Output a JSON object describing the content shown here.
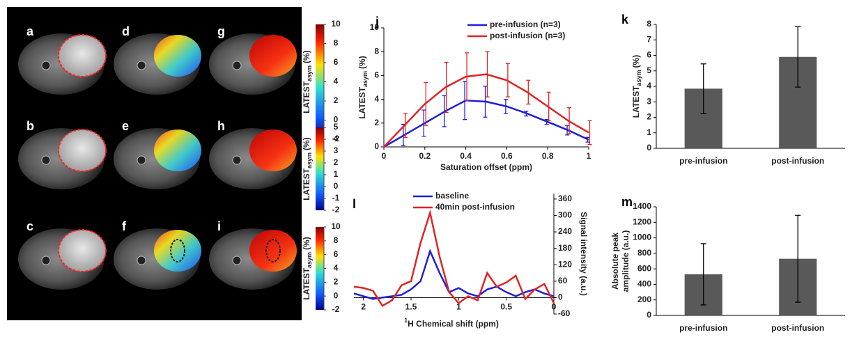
{
  "panels": {
    "labels": [
      "a",
      "b",
      "c",
      "d",
      "e",
      "f",
      "g",
      "h",
      "i"
    ]
  },
  "colorbars": [
    {
      "lim": [
        -2,
        10
      ],
      "ticks": [
        10,
        8,
        6,
        4,
        2,
        0,
        -2
      ],
      "label": "LATEST",
      "label_sub": "asym",
      "label_unit": "(%)"
    },
    {
      "lim": [
        -2,
        5
      ],
      "ticks": [
        5,
        4,
        3,
        2,
        1,
        0,
        -1,
        -2
      ],
      "label": "LATEST",
      "label_sub": "asym",
      "label_unit": "(%)"
    },
    {
      "lim": [
        -2,
        10
      ],
      "ticks": [
        10,
        8,
        6,
        4,
        2,
        0,
        -2
      ],
      "label": "LATEST",
      "label_sub": "asym",
      "label_unit": "(%)"
    }
  ],
  "chart_data": [
    {
      "type": "line",
      "panel_label": "j",
      "x": [
        0,
        0.1,
        0.2,
        0.3,
        0.4,
        0.5,
        0.6,
        0.7,
        0.8,
        0.9,
        1
      ],
      "series": [
        {
          "name": "pre-infusion (n=3)",
          "color": "#1f1fd6",
          "values": [
            0,
            1.0,
            2.0,
            3.0,
            3.9,
            3.8,
            3.4,
            2.8,
            2.1,
            1.4,
            0.6
          ],
          "errors": [
            0,
            0.9,
            1.1,
            1.3,
            1.6,
            1.3,
            0.6,
            0.2,
            0.2,
            0.4,
            0.2
          ]
        },
        {
          "name": "post-infusion (n=3)",
          "color": "#e02424",
          "values": [
            0,
            1.8,
            3.6,
            5.0,
            5.9,
            6.1,
            5.6,
            4.6,
            3.4,
            2.2,
            1.2
          ],
          "errors": [
            0,
            1.0,
            1.8,
            2.1,
            2.0,
            1.9,
            1.4,
            1.0,
            1.2,
            1.1,
            1.0
          ]
        }
      ],
      "xlim": [
        0,
        1
      ],
      "xticks": [
        0,
        0.2,
        0.4,
        0.6,
        0.8,
        1
      ],
      "ylim": [
        0,
        10
      ],
      "yticks": [
        0,
        2,
        4,
        6,
        8,
        10
      ],
      "x_label": "Saturation offset (ppm)",
      "y_label": "LATEST",
      "y_label_sub": "asym",
      "y_label_unit": "(%)"
    },
    {
      "type": "bar",
      "panel_label": "k",
      "categories": [
        "pre-infusion",
        "post-infusion"
      ],
      "values": [
        3.85,
        5.9
      ],
      "errors": [
        1.6,
        1.95
      ],
      "color": "#595959",
      "ylim": [
        0,
        8
      ],
      "yticks": [
        0,
        1,
        2,
        3,
        4,
        5,
        6,
        7,
        8
      ],
      "y_label": "LATEST",
      "y_label_sub": "asym",
      "y_label_unit": "(%)"
    },
    {
      "type": "line",
      "panel_label": "l",
      "x": [
        2.1,
        2,
        1.9,
        1.8,
        1.7,
        1.6,
        1.5,
        1.4,
        1.3,
        1.2,
        1.1,
        1,
        0.9,
        0.8,
        0.7,
        0.6,
        0.5,
        0.4,
        0.3,
        0.2,
        0.1,
        0
      ],
      "series": [
        {
          "name": "baseline",
          "color": "#1f1fd6",
          "values": [
            15,
            5,
            -5,
            0,
            5,
            10,
            30,
            60,
            170,
            90,
            20,
            35,
            15,
            5,
            30,
            40,
            20,
            5,
            20,
            30,
            15,
            5
          ]
        },
        {
          "name": "40min post-infusion",
          "color": "#e02424",
          "values": [
            40,
            35,
            25,
            -30,
            -10,
            45,
            60,
            200,
            310,
            150,
            20,
            -20,
            5,
            -10,
            90,
            40,
            55,
            80,
            -5,
            30,
            50,
            -20
          ]
        }
      ],
      "xlim": [
        2.1,
        0
      ],
      "xticks": [
        2,
        1.5,
        1,
        0.5,
        0
      ],
      "ylim": [
        -60,
        380
      ],
      "yticks": [
        -60,
        0,
        60,
        120,
        180,
        240,
        300,
        360
      ],
      "x_label_sup": "1",
      "x_label": "H Chemical shift (ppm)",
      "y_label": "Signal intensity (a.u.)"
    },
    {
      "type": "bar",
      "panel_label": "m",
      "categories": [
        "pre-infusion",
        "post-infusion"
      ],
      "values": [
        530,
        730
      ],
      "errors": [
        395,
        560
      ],
      "color": "#595959",
      "ylim": [
        0,
        1400
      ],
      "yticks": [
        0,
        200,
        400,
        600,
        800,
        1000,
        1200,
        1400
      ],
      "y_label_lines": [
        "Absolute peak",
        "amplitude (a.u.)"
      ]
    }
  ]
}
